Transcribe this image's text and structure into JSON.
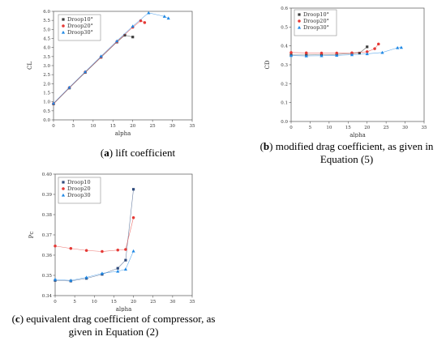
{
  "panels": [
    {
      "caption": {
        "letter": "a",
        "text": " lift coefficient"
      },
      "chart_data": {
        "type": "line",
        "xlabel": "alpha",
        "ylabel": "CL",
        "xlim": [
          0,
          35
        ],
        "ylim": [
          0,
          6
        ],
        "xticks": [
          "0",
          "5",
          "10",
          "15",
          "20",
          "25",
          "30",
          "35"
        ],
        "yticks": [
          "0.0",
          "0.5",
          "1.0",
          "1.5",
          "2.0",
          "2.5",
          "3.0",
          "3.5",
          "4.0",
          "4.5",
          "5.0",
          "5.5",
          "6.0"
        ],
        "legend": "top-left",
        "series": [
          {
            "name": "Droop10°",
            "color": "#3d3d3d",
            "marker": "square",
            "x": [
              0,
              4,
              8,
              12,
              16,
              18,
              20
            ],
            "y": [
              0.88,
              1.76,
              2.62,
              3.46,
              4.3,
              4.68,
              4.58
            ]
          },
          {
            "name": "Droop20°",
            "color": "#e53935",
            "marker": "circle",
            "x": [
              0,
              4,
              8,
              12,
              16,
              20,
              22,
              23
            ],
            "y": [
              0.9,
              1.78,
              2.64,
              3.48,
              4.32,
              5.12,
              5.48,
              5.38
            ]
          },
          {
            "name": "Droop30°",
            "color": "#1e88e5",
            "marker": "triangle",
            "x": [
              0,
              4,
              8,
              12,
              16,
              20,
              24,
              28,
              29
            ],
            "y": [
              0.92,
              1.8,
              2.66,
              3.52,
              4.36,
              5.18,
              5.92,
              5.72,
              5.62
            ]
          }
        ]
      }
    },
    {
      "caption": {
        "letter": "b",
        "text": " modified drag coefficient, as given in Equation (5)"
      },
      "chart_data": {
        "type": "line",
        "xlabel": "alpha",
        "ylabel": "CD",
        "xlim": [
          0,
          35
        ],
        "ylim": [
          0,
          0.6
        ],
        "xticks": [
          "0",
          "5",
          "10",
          "15",
          "20",
          "25",
          "30",
          "35"
        ],
        "yticks": [
          "0.0",
          "0.1",
          "0.2",
          "0.3",
          "0.4",
          "0.5",
          "0.6"
        ],
        "legend": "top-left",
        "series": [
          {
            "name": "Droop10°",
            "color": "#3d3d3d",
            "marker": "square",
            "x": [
              0,
              4,
              8,
              12,
              16,
              18,
              20
            ],
            "y": [
              0.352,
              0.352,
              0.353,
              0.355,
              0.36,
              0.362,
              0.395
            ]
          },
          {
            "name": "Droop20°",
            "color": "#e53935",
            "marker": "circle",
            "x": [
              0,
              4,
              8,
              12,
              16,
              20,
              22,
              23
            ],
            "y": [
              0.365,
              0.363,
              0.362,
              0.362,
              0.363,
              0.369,
              0.385,
              0.41
            ]
          },
          {
            "name": "Droop30°",
            "color": "#1e88e5",
            "marker": "triangle",
            "x": [
              0,
              4,
              8,
              12,
              16,
              20,
              24,
              28,
              29
            ],
            "y": [
              0.349,
              0.347,
              0.348,
              0.35,
              0.353,
              0.358,
              0.365,
              0.39,
              0.392
            ]
          }
        ]
      }
    },
    {
      "caption": {
        "letter": "c",
        "text": " equivalent drag coefficient of compressor, as given in Equation (2)"
      },
      "chart_data": {
        "type": "line",
        "xlabel": "alpha",
        "ylabel": "Pc",
        "xlim": [
          0,
          35
        ],
        "ylim": [
          0.34,
          0.4
        ],
        "xticks": [
          "0",
          "5",
          "10",
          "15",
          "20",
          "25",
          "30",
          "35"
        ],
        "yticks": [
          "0.34",
          "0.35",
          "0.36",
          "0.37",
          "0.38",
          "0.39",
          "0.40"
        ],
        "legend": "top-left",
        "series": [
          {
            "name": "Droop10",
            "color": "#2f4b7c",
            "marker": "square",
            "x": [
              0,
              4,
              8,
              12,
              16,
              18,
              20
            ],
            "y": [
              0.3475,
              0.3472,
              0.3485,
              0.3505,
              0.3535,
              0.3575,
              0.3925
            ]
          },
          {
            "name": "Droop20",
            "color": "#e53935",
            "marker": "circle",
            "x": [
              0,
              4,
              8,
              12,
              16,
              18,
              20
            ],
            "y": [
              0.3645,
              0.3633,
              0.3623,
              0.3618,
              0.3625,
              0.3628,
              0.3785
            ]
          },
          {
            "name": "Droop30",
            "color": "#1e88e5",
            "marker": "triangle",
            "x": [
              0,
              4,
              8,
              12,
              16,
              18,
              20
            ],
            "y": [
              0.348,
              0.3475,
              0.349,
              0.351,
              0.352,
              0.353,
              0.362
            ]
          }
        ]
      }
    }
  ]
}
